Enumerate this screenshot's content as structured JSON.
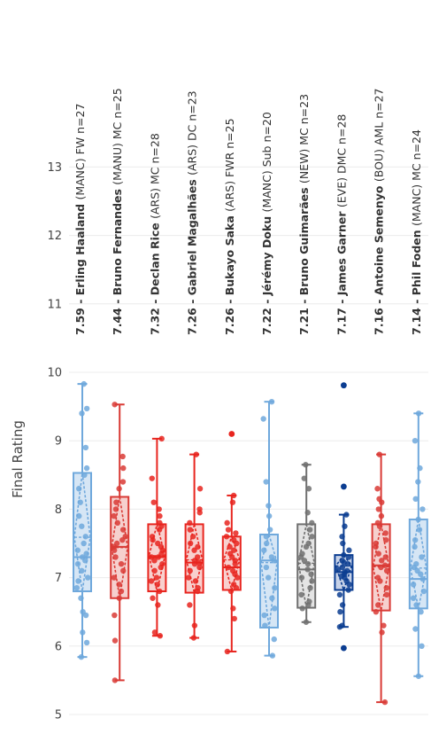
{
  "chart_data": {
    "type": "box",
    "title": "",
    "ylabel": "Final Rating",
    "ylim": [
      5,
      13.7
    ],
    "yticks": [
      5,
      6,
      7,
      8,
      9,
      10,
      11,
      12,
      13
    ],
    "grid": true,
    "players": [
      {
        "rating_label": "7.59",
        "name": "Erling Haaland",
        "info": "(MANC) FW n=27",
        "color": "#6fa8dc",
        "fill": "#d6e6f5",
        "min": 5.84,
        "q1": 6.8,
        "median": 7.3,
        "mean": 7.59,
        "q3": 8.53,
        "max": 9.83,
        "outliers": [],
        "points": [
          5.84,
          6.05,
          6.2,
          6.45,
          6.5,
          6.7,
          6.85,
          6.95,
          7.0,
          7.1,
          7.2,
          7.25,
          7.3,
          7.35,
          7.4,
          7.5,
          7.6,
          7.75,
          7.9,
          8.1,
          8.3,
          8.5,
          8.6,
          8.9,
          9.4,
          9.47,
          9.83
        ]
      },
      {
        "rating_label": "7.44",
        "name": "Bruno Fernandes",
        "info": "(MANU) MC n=25",
        "color": "#d93a35",
        "fill": "#f6d0ce",
        "min": 5.5,
        "q1": 6.7,
        "median": 7.45,
        "mean": 7.44,
        "q3": 8.18,
        "max": 9.53,
        "outliers": [],
        "points": [
          5.5,
          6.08,
          6.45,
          6.7,
          6.8,
          6.9,
          7.0,
          7.1,
          7.2,
          7.3,
          7.4,
          7.45,
          7.5,
          7.55,
          7.6,
          7.7,
          7.8,
          7.9,
          8.0,
          8.1,
          8.3,
          8.4,
          8.6,
          8.77,
          9.53
        ]
      },
      {
        "rating_label": "7.32",
        "name": "Declan Rice",
        "info": "(ARS) MC n=28",
        "color": "#e8251f",
        "fill": "#f8d0ce",
        "min": 6.15,
        "q1": 6.8,
        "median": 7.3,
        "mean": 7.32,
        "q3": 7.78,
        "max": 9.03,
        "outliers": [],
        "points": [
          6.15,
          6.2,
          6.6,
          6.7,
          6.8,
          6.9,
          6.95,
          7.0,
          7.1,
          7.15,
          7.2,
          7.25,
          7.3,
          7.3,
          7.35,
          7.4,
          7.45,
          7.5,
          7.55,
          7.6,
          7.7,
          7.75,
          7.8,
          7.9,
          8.0,
          8.1,
          8.45,
          9.03
        ]
      },
      {
        "rating_label": "7.26",
        "name": "Gabriel Magalhães",
        "info": "(ARS) DC n=23",
        "color": "#e8251f",
        "fill": "#f8d0ce",
        "min": 6.12,
        "q1": 6.78,
        "median": 7.22,
        "mean": 7.26,
        "q3": 7.78,
        "max": 8.8,
        "outliers": [],
        "points": [
          6.12,
          6.3,
          6.6,
          6.8,
          6.85,
          6.95,
          7.0,
          7.1,
          7.15,
          7.2,
          7.22,
          7.25,
          7.3,
          7.4,
          7.45,
          7.5,
          7.6,
          7.7,
          7.8,
          7.95,
          8.0,
          8.3,
          8.8
        ]
      },
      {
        "rating_label": "7.26",
        "name": "Bukayo Saka",
        "info": "(ARS) FWR n=25",
        "color": "#e8251f",
        "fill": "#f8d0ce",
        "min": 5.92,
        "q1": 6.82,
        "median": 7.15,
        "mean": 7.26,
        "q3": 7.6,
        "max": 8.2,
        "outliers": [
          9.1
        ],
        "points": [
          5.92,
          6.4,
          6.55,
          6.8,
          6.85,
          6.9,
          7.0,
          7.05,
          7.1,
          7.15,
          7.2,
          7.25,
          7.3,
          7.35,
          7.4,
          7.45,
          7.5,
          7.55,
          7.6,
          7.65,
          7.7,
          7.8,
          8.1,
          8.2
        ]
      },
      {
        "rating_label": "7.22",
        "name": "Jérémy Doku",
        "info": "(MANC) Sub n=20",
        "color": "#6fa8dc",
        "fill": "#d6e6f5",
        "min": 5.86,
        "q1": 6.27,
        "median": 7.25,
        "mean": 7.22,
        "q3": 7.63,
        "max": 9.57,
        "outliers": [],
        "points": [
          5.86,
          6.1,
          6.3,
          6.45,
          6.55,
          6.7,
          6.85,
          7.0,
          7.15,
          7.25,
          7.3,
          7.4,
          7.5,
          7.6,
          7.7,
          7.9,
          8.05,
          8.4,
          9.32,
          9.57
        ]
      },
      {
        "rating_label": "7.21",
        "name": "Bruno Guimarães",
        "info": "(NEW) MC n=23",
        "color": "#707070",
        "fill": "#e4e4e4",
        "min": 6.35,
        "q1": 6.56,
        "median": 7.12,
        "mean": 7.21,
        "q3": 7.78,
        "max": 8.65,
        "outliers": [],
        "points": [
          6.35,
          6.55,
          6.6,
          6.65,
          6.75,
          6.85,
          6.95,
          7.0,
          7.05,
          7.12,
          7.2,
          7.25,
          7.3,
          7.35,
          7.45,
          7.5,
          7.6,
          7.7,
          7.8,
          7.95,
          8.3,
          8.45,
          8.65
        ]
      },
      {
        "rating_label": "7.17",
        "name": "James Garner",
        "info": "(EVE) DMC n=28",
        "color": "#0b3d91",
        "fill": "#c7d2e8",
        "min": 6.28,
        "q1": 6.82,
        "median": 7.08,
        "mean": 7.17,
        "q3": 7.33,
        "max": 7.92,
        "outliers": [
          5.97,
          8.33,
          9.81
        ],
        "points": [
          6.28,
          6.3,
          6.5,
          6.6,
          6.75,
          6.82,
          6.9,
          6.95,
          7.0,
          7.02,
          7.05,
          7.08,
          7.1,
          7.12,
          7.15,
          7.2,
          7.22,
          7.25,
          7.3,
          7.33,
          7.4,
          7.5,
          7.6,
          7.75,
          7.92
        ]
      },
      {
        "rating_label": "7.16",
        "name": "Antoine Semenyo",
        "info": "(BOU) AML n=27",
        "color": "#d93a35",
        "fill": "#f6d0ce",
        "min": 5.18,
        "q1": 6.52,
        "median": 7.18,
        "mean": 7.16,
        "q3": 7.78,
        "max": 8.8,
        "outliers": [],
        "points": [
          5.18,
          6.2,
          6.3,
          6.5,
          6.6,
          6.75,
          6.85,
          6.95,
          7.0,
          7.1,
          7.15,
          7.18,
          7.25,
          7.3,
          7.35,
          7.45,
          7.5,
          7.55,
          7.65,
          7.75,
          7.8,
          7.9,
          8.0,
          8.1,
          8.15,
          8.3,
          8.8
        ]
      },
      {
        "rating_label": "7.14",
        "name": "Phil Foden",
        "info": "(MANC) MC n=24",
        "color": "#6fa8dc",
        "fill": "#d6e6f5",
        "min": 5.56,
        "q1": 6.55,
        "median": 6.98,
        "mean": 7.14,
        "q3": 7.85,
        "max": 9.4,
        "outliers": [],
        "points": [
          5.56,
          6.0,
          6.25,
          6.5,
          6.6,
          6.7,
          6.8,
          6.9,
          6.98,
          7.05,
          7.1,
          7.15,
          7.2,
          7.3,
          7.45,
          7.55,
          7.7,
          7.85,
          8.0,
          8.15,
          8.4,
          8.6,
          9.0,
          9.4
        ]
      }
    ]
  }
}
